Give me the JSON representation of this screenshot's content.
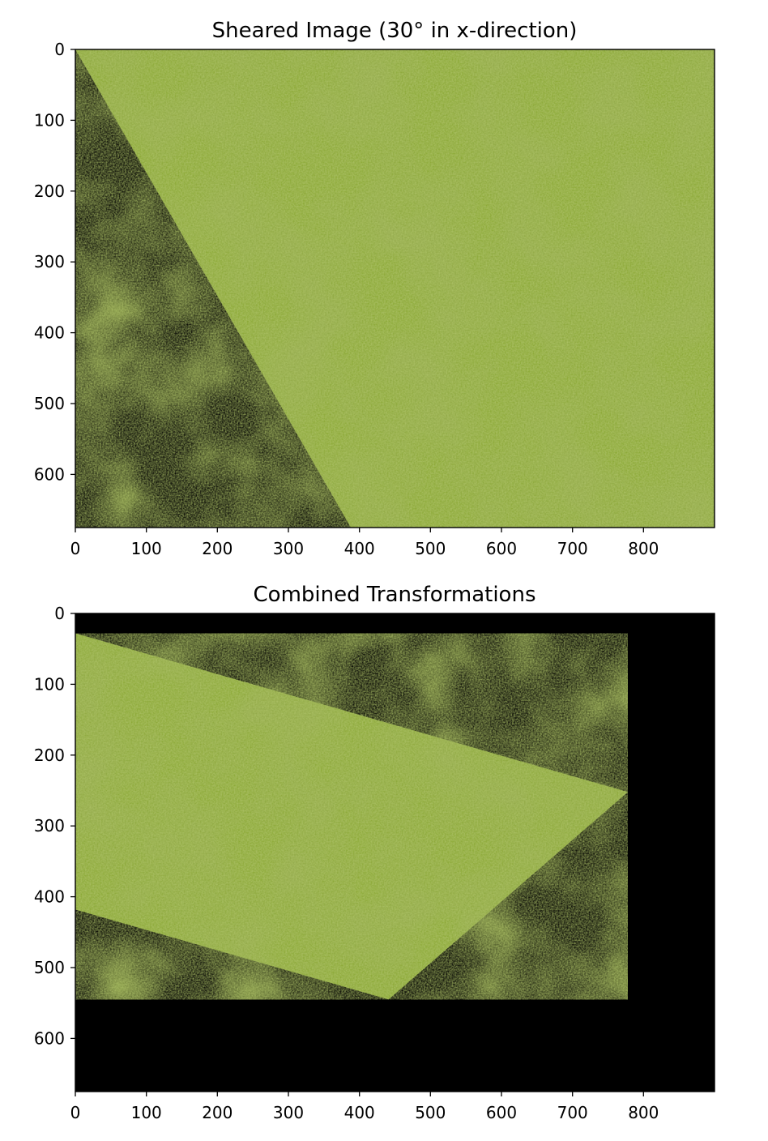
{
  "figure": {
    "panels": [
      {
        "id": "sheared",
        "title": "Sheared Image (30° in x-direction)",
        "x_ticks": [
          "0",
          "100",
          "200",
          "300",
          "400",
          "500",
          "600",
          "700",
          "800"
        ],
        "y_ticks": [
          "0",
          "100",
          "200",
          "300",
          "400",
          "500",
          "600"
        ],
        "image_extent": {
          "x": [
            0,
            900
          ],
          "y": [
            675,
            0
          ]
        },
        "texture_polygon": [
          [
            0,
            0
          ],
          [
            900,
            0
          ],
          [
            900,
            675
          ],
          [
            388,
            675
          ]
        ],
        "background_color": "#000000",
        "texture_color": "#8aa830"
      },
      {
        "id": "combined",
        "title": "Combined Transformations",
        "x_ticks": [
          "0",
          "100",
          "200",
          "300",
          "400",
          "500",
          "600",
          "700",
          "800"
        ],
        "y_ticks": [
          "0",
          "100",
          "200",
          "300",
          "400",
          "500",
          "600"
        ],
        "image_extent": {
          "x": [
            0,
            900
          ],
          "y": [
            675,
            0
          ]
        },
        "texture_polygon": [
          [
            0,
            28
          ],
          [
            778,
            252
          ],
          [
            441,
            545
          ],
          [
            0,
            418
          ]
        ],
        "background_color": "#000000",
        "texture_color": "#8aa830"
      }
    ]
  }
}
